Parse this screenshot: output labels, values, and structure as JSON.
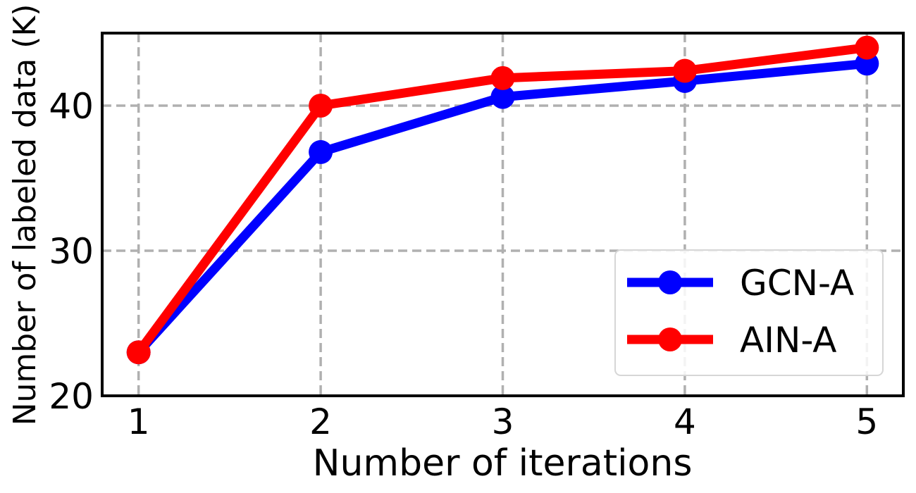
{
  "chart_data": {
    "type": "line",
    "title": "",
    "xlabel": "Number of iterations",
    "ylabel": "Number of labeled data (K)",
    "x": [
      1,
      2,
      3,
      4,
      5
    ],
    "xticks": [
      "1",
      "2",
      "3",
      "4",
      "5"
    ],
    "yticks": [
      "20",
      "30",
      "40"
    ],
    "ylim": [
      20,
      45
    ],
    "grid": true,
    "legend_position": "bottom-right",
    "series": [
      {
        "name": "GCN-A",
        "color": "#0000ff",
        "values": [
          23.0,
          36.8,
          40.6,
          41.7,
          42.9
        ]
      },
      {
        "name": "AIN-A",
        "color": "#ff0000",
        "values": [
          23.0,
          40.0,
          41.9,
          42.4,
          44.0
        ]
      }
    ]
  }
}
